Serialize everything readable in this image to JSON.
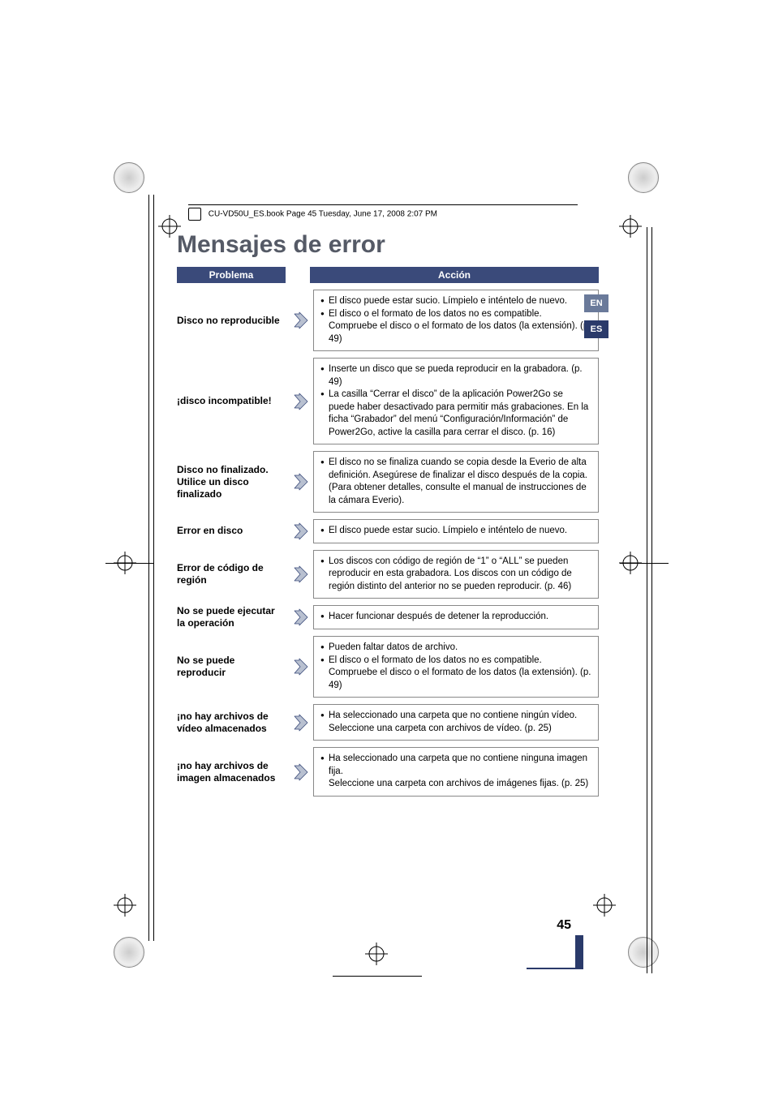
{
  "header_text": "CU-VD50U_ES.book  Page 45  Tuesday, June 17, 2008  2:07 PM",
  "title": "Mensajes de error",
  "columns": {
    "problem": "Problema",
    "action": "Acción"
  },
  "lang_tabs": [
    "EN",
    "ES"
  ],
  "page_number": "45",
  "rows": [
    {
      "problem": "Disco no reproducible",
      "actions": [
        "El disco puede estar sucio. Límpielo e inténtelo de nuevo.",
        "El disco o el formato de los datos no es compatible. Compruebe el disco o el formato de los datos (la extensión). (p. 49)"
      ]
    },
    {
      "problem": "¡disco incompatible!",
      "actions": [
        "Inserte un disco que se pueda reproducir en la grabadora. (p. 49)",
        "La casilla “Cerrar el disco” de la aplicación Power2Go se puede haber desactivado para permitir más grabaciones. En la ficha “Grabador” del menú “Configuración/Información” de Power2Go, active la casilla para cerrar el disco. (p. 16)"
      ]
    },
    {
      "problem": "Disco no finalizado. Utilice un disco finalizado",
      "actions": [
        "El disco no se finaliza cuando se copia desde la Everio de alta definición. Asegúrese de finalizar el disco después de la copia. (Para obtener detalles, consulte el manual de instrucciones de la cámara Everio)."
      ]
    },
    {
      "problem": "Error en disco",
      "actions": [
        "El disco puede estar sucio. Límpielo e inténtelo de nuevo."
      ]
    },
    {
      "problem": "Error de código de región",
      "actions": [
        "Los discos con código de región de “1” o “ALL” se pueden reproducir en esta grabadora. Los discos con un código de región distinto del anterior no se pueden reproducir. (p. 46)"
      ]
    },
    {
      "problem": "No se puede ejecutar la operación",
      "actions": [
        "Hacer funcionar después de detener la reproducción."
      ]
    },
    {
      "problem": "No se puede reproducir",
      "actions": [
        "Pueden faltar datos de archivo.",
        "El disco o el formato de los datos no es compatible. Compruebe el disco o el formato de los datos (la extensión). (p. 49)"
      ]
    },
    {
      "problem": "¡no hay archivos de vídeo almacenados",
      "actions": [
        "Ha seleccionado una carpeta que no contiene ningún vídeo.\nSeleccione una carpeta con archivos de vídeo. (p. 25)"
      ]
    },
    {
      "problem": "¡no hay archivos de imagen almacenados",
      "actions": [
        "Ha seleccionado una carpeta que no contiene ninguna imagen fija.\nSeleccione una carpeta con archivos de imágenes fijas. (p. 25)"
      ]
    }
  ],
  "colors": {
    "title": "#555a66",
    "header_bg": "#3a4a7a",
    "arrow_fill": "#b8c0d0",
    "arrow_stroke": "#3a4a7a",
    "lang_inactive": "#6a7a9a",
    "lang_active": "#2a3a6a"
  }
}
